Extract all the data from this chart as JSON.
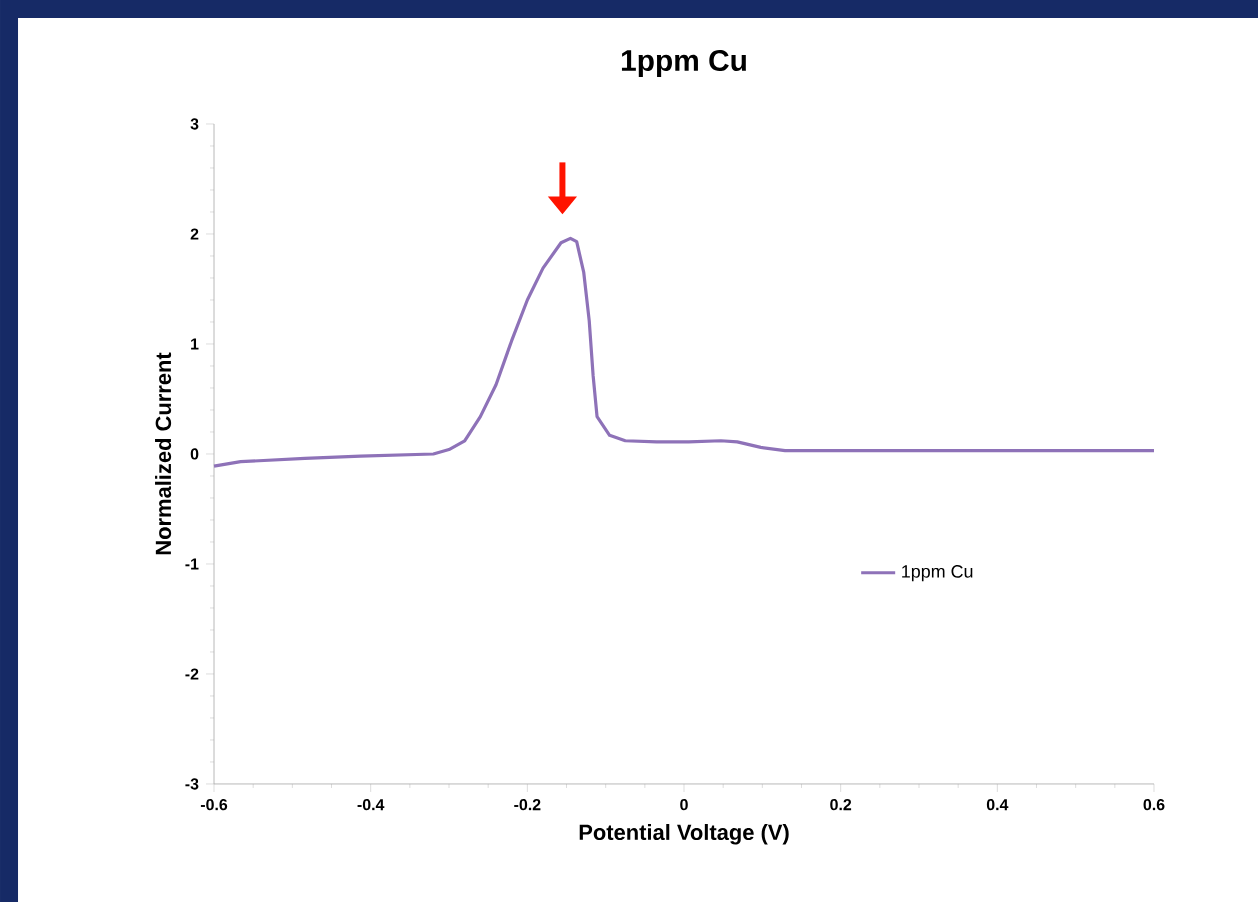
{
  "chart_data": {
    "type": "line",
    "title": "1ppm Cu",
    "xlabel": "Potential Voltage (V)",
    "ylabel": "Normalized Current",
    "xlim": [
      -0.6,
      0.6
    ],
    "xticks": [
      -0.6,
      -0.4,
      -0.2,
      0,
      0.2,
      0.4,
      0.6
    ],
    "ylim": [
      -3,
      3
    ],
    "yticks": [
      -3,
      -2,
      -1,
      0,
      1,
      2,
      3
    ],
    "legend": "right",
    "grid": false,
    "marker": "none",
    "line_style": "solid",
    "series": [
      {
        "name": "1ppm Cu",
        "color": "#8e72b8",
        "x": [
          -0.6,
          -0.566,
          -0.484,
          -0.413,
          -0.32,
          -0.3,
          -0.28,
          -0.26,
          -0.24,
          -0.22,
          -0.2,
          -0.18,
          -0.157,
          -0.145,
          -0.137,
          -0.128,
          -0.121,
          -0.116,
          -0.111,
          -0.095,
          -0.075,
          -0.035,
          0.006,
          0.047,
          0.068,
          0.098,
          0.129,
          0.6
        ],
        "values": [
          -0.11,
          -0.07,
          -0.04,
          -0.02,
          0.0,
          0.04,
          0.12,
          0.34,
          0.63,
          1.03,
          1.4,
          1.69,
          1.92,
          1.96,
          1.93,
          1.65,
          1.21,
          0.71,
          0.34,
          0.17,
          0.12,
          0.11,
          0.11,
          0.12,
          0.11,
          0.06,
          0.03,
          0.03
        ]
      }
    ]
  }
}
